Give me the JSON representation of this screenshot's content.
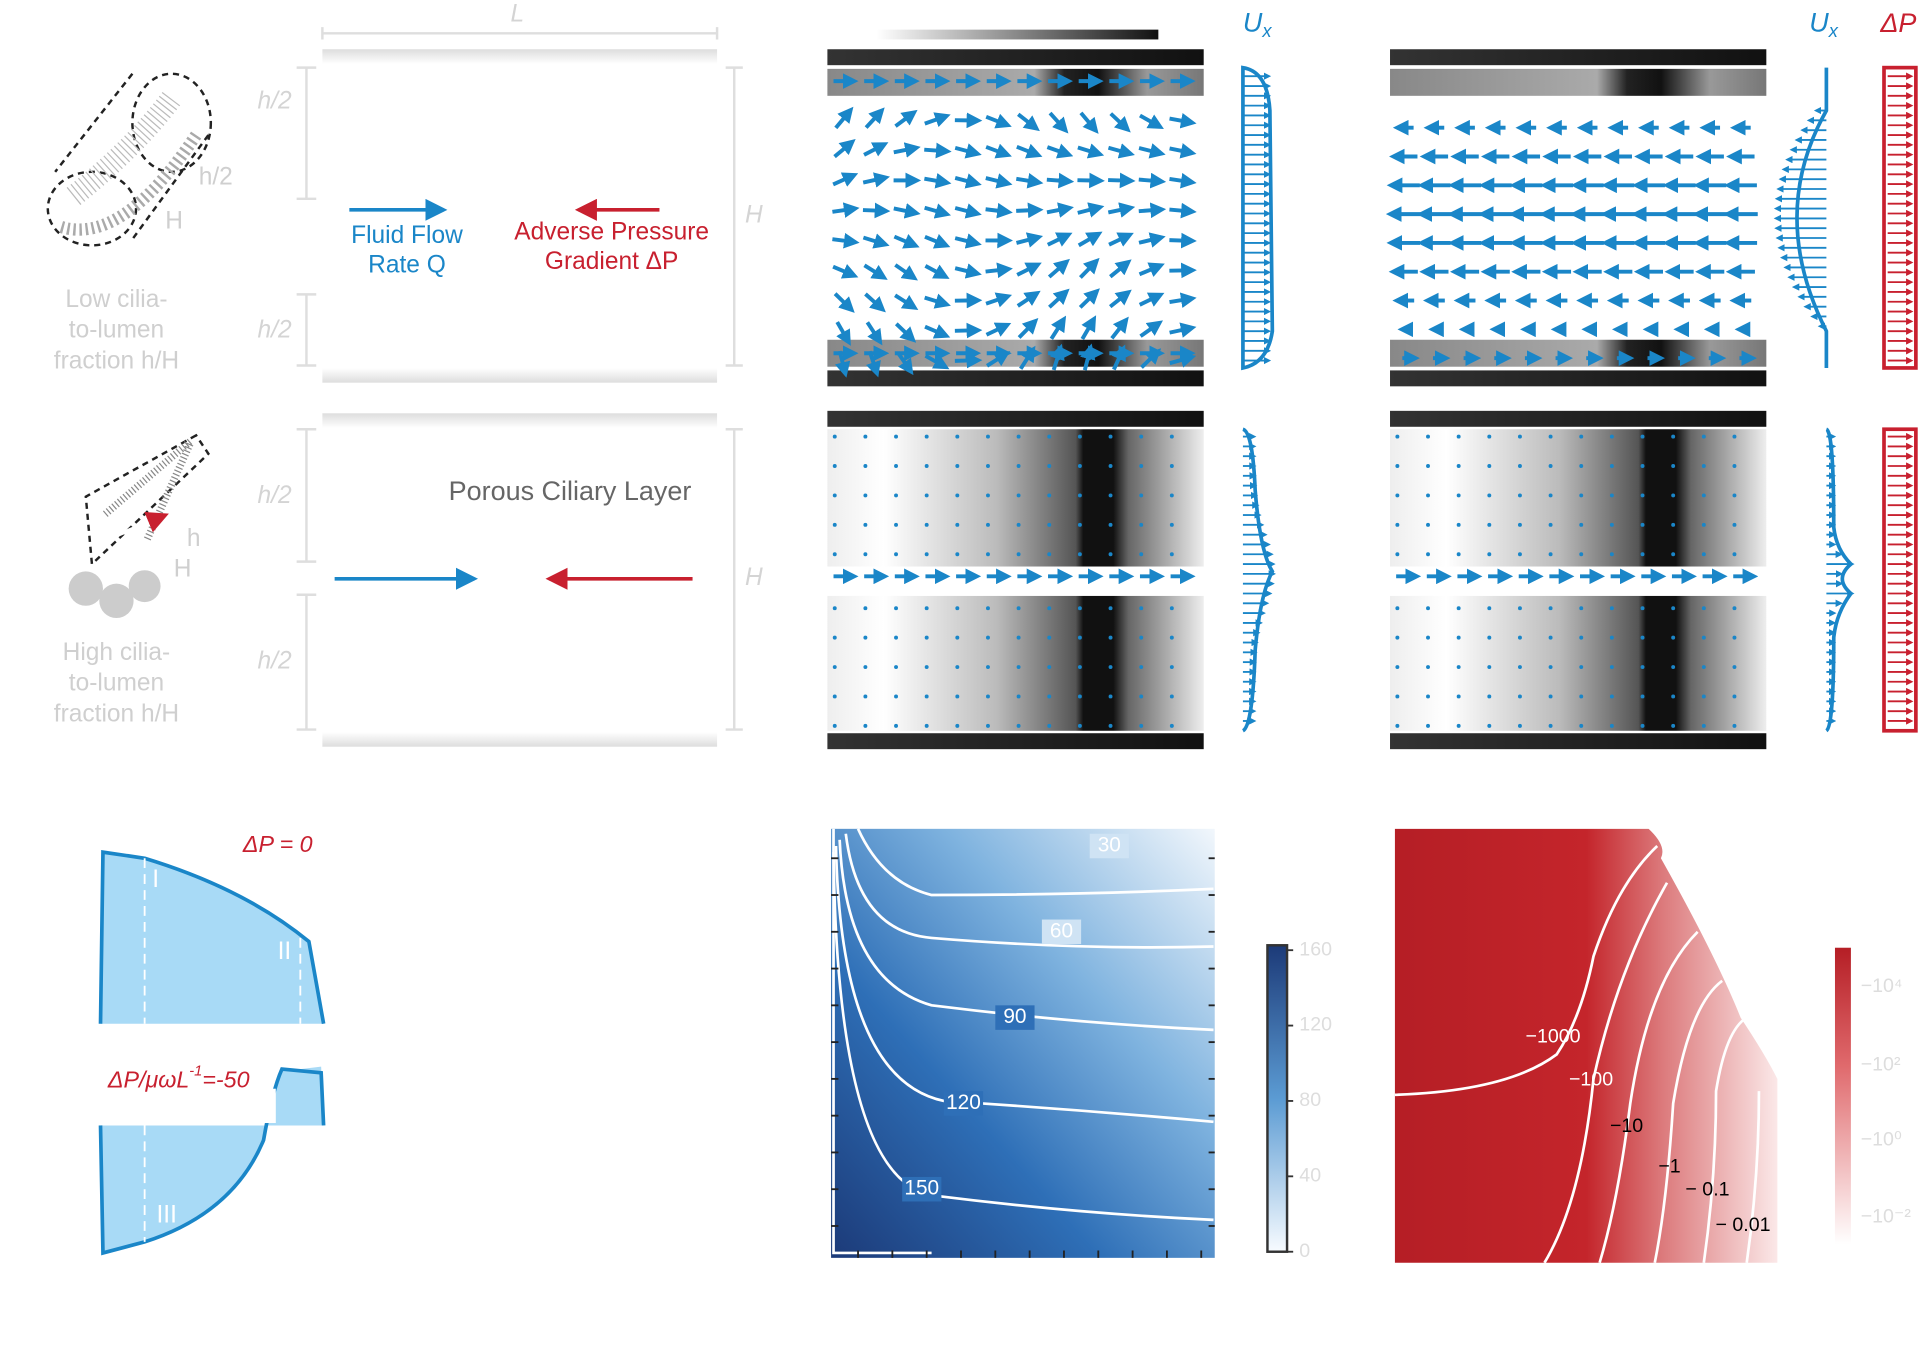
{
  "schematic": {
    "length_label": "L",
    "height_labels": [
      "H",
      "H"
    ],
    "half_height_labels": [
      "h/2",
      "h/2",
      "h/2",
      "h/2"
    ],
    "low_cilia": {
      "caption": [
        "Low cilia-",
        "to-lumen",
        "fraction h/H"
      ],
      "h_label": "h/2",
      "H_label": "H"
    },
    "high_cilia": {
      "caption": [
        "High cilia-",
        "to-lumen",
        "fraction h/H"
      ],
      "h_label": "h",
      "H_label": "H"
    },
    "flow": [
      "Fluid Flow",
      "Rate Q"
    ],
    "pressure": [
      "Adverse Pressure",
      "Gradient ΔP"
    ],
    "porous_layer": "Porous Ciliary Layer"
  },
  "flow_fields": {
    "velocity_labels": [
      {
        "symbol": "U",
        "subscript": "x"
      },
      {
        "symbol": "U",
        "subscript": "x"
      }
    ],
    "pressure_label": "ΔP"
  },
  "regimes": {
    "zero_pressure": "ΔP = 0",
    "adverse": {
      "base": "ΔP/μωL",
      "exponent": "-1",
      "value": "=-50"
    },
    "zones": [
      "I",
      "II",
      "III"
    ]
  },
  "contour_blue": {
    "levels": [
      "30",
      "60",
      "90",
      "120",
      "150"
    ],
    "colorbar_ticks": [
      0,
      40,
      80,
      120,
      160
    ]
  },
  "contour_red": {
    "levels": [
      "−1000",
      "−100",
      "−10",
      "−1",
      "− 0.1",
      "− 0.01"
    ],
    "colorbar_ticks": [
      "−10⁴",
      "−10²",
      "−10⁰",
      "−10⁻²"
    ]
  }
}
